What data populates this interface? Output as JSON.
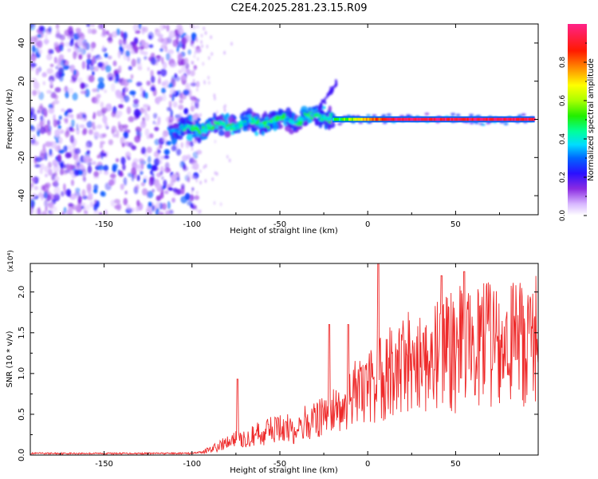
{
  "title": "C2E4.2025.281.23.15.R09",
  "chart_data": [
    {
      "type": "heatmap",
      "name": "spectrogram",
      "xlabel": "Height of straight line (km)",
      "ylabel": "Frequency (Hz)",
      "xlim": [
        -192,
        97
      ],
      "ylim": [
        -50,
        50
      ],
      "x_ticks": [
        -150,
        -100,
        -50,
        0,
        50
      ],
      "y_ticks": [
        -40,
        -20,
        0,
        20,
        40
      ],
      "colorbar": {
        "label": "Normalized spectral amplitude",
        "range": [
          0.0,
          1.0
        ],
        "ticks": [
          0.0,
          0.2,
          0.4,
          0.6,
          0.8
        ],
        "tick_labels": [
          "0.0",
          "0.2",
          "0.4",
          "0.6",
          "0.8"
        ]
      },
      "features": [
        {
          "region": "noise",
          "x_range": [
            -192,
            -100
          ],
          "freq_range": [
            -50,
            50
          ],
          "amplitude": 0.2
        },
        {
          "region": "ridge",
          "x_range": [
            -112,
            -20
          ],
          "freq_center": [
            -6,
            2
          ],
          "freq_spread_hz": 4,
          "amplitude": 0.45
        },
        {
          "region": "line",
          "x_range": [
            -20,
            95
          ],
          "freq_center": 0,
          "freq_spread_hz": 2,
          "amplitude": 0.9
        },
        {
          "region": "spur",
          "x_range": [
            -28,
            -17
          ],
          "freq_range": [
            5,
            20
          ],
          "amplitude": 0.2
        }
      ]
    },
    {
      "type": "line",
      "name": "snr",
      "xlabel": "Height of straight line (km)",
      "ylabel": "SNR (10 * v/v)",
      "y_multiplier": "(x10⁴)",
      "xlim": [
        -192,
        97
      ],
      "ylim": [
        0.0,
        2.35
      ],
      "x_ticks": [
        -150,
        -100,
        -50,
        0,
        50
      ],
      "y_ticks": [
        0.0,
        0.5,
        1.0,
        1.5,
        2.0
      ],
      "y_tick_labels": [
        "0.0",
        "0.5",
        "1.0",
        "1.5",
        "2.0"
      ],
      "color": "#ee2a2a",
      "envelope": {
        "x": [
          -192,
          -100,
          -95,
          -90,
          -80,
          -70,
          -60,
          -50,
          -40,
          -35,
          -30,
          -25,
          -20,
          -15,
          -10,
          -5,
          0,
          5,
          10,
          15,
          20,
          30,
          40,
          50,
          60,
          70,
          80,
          90,
          95
        ],
        "y": [
          0.02,
          0.02,
          0.04,
          0.08,
          0.18,
          0.28,
          0.33,
          0.38,
          0.42,
          0.46,
          0.52,
          0.6,
          0.66,
          0.74,
          0.82,
          0.9,
          0.98,
          1.08,
          1.18,
          1.25,
          1.32,
          1.42,
          1.5,
          1.56,
          1.6,
          1.63,
          1.65,
          1.66,
          1.66
        ]
      },
      "peaks": [
        {
          "x": -74,
          "y": 0.93
        },
        {
          "x": -22,
          "y": 1.6
        },
        {
          "x": -11,
          "y": 1.6
        },
        {
          "x": 6,
          "y": 2.35
        },
        {
          "x": 42,
          "y": 2.2
        },
        {
          "x": 55,
          "y": 2.25
        }
      ]
    }
  ]
}
